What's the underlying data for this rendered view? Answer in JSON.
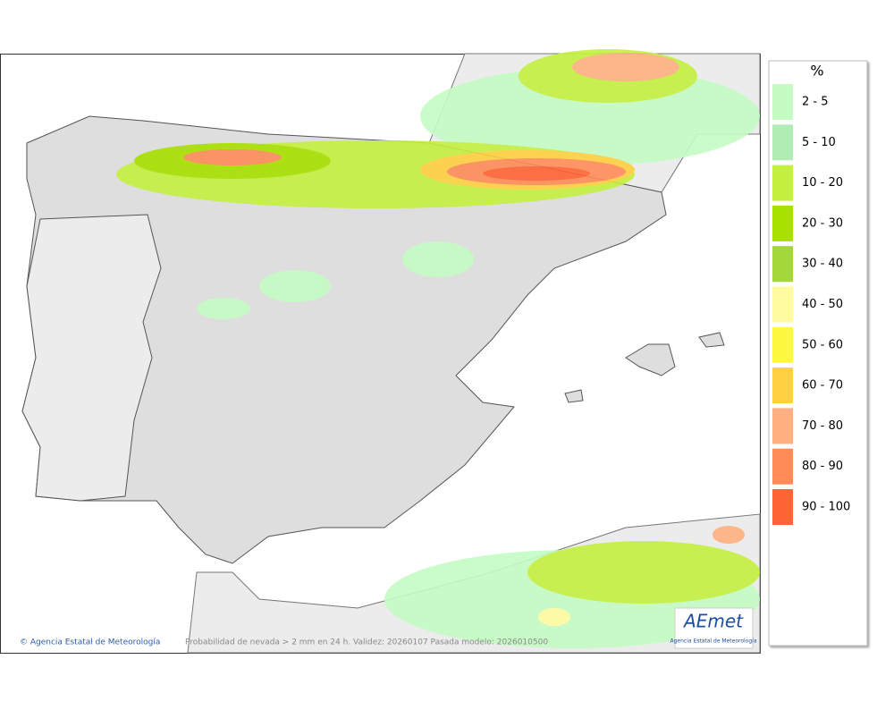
{
  "legend": {
    "unit": "%",
    "items": [
      {
        "label": "2 - 5",
        "color": "#c4fcc4"
      },
      {
        "label": "5 - 10",
        "color": "#b0ecb4"
      },
      {
        "label": "10 - 20",
        "color": "#c4f040"
      },
      {
        "label": "20 - 30",
        "color": "#a8e000"
      },
      {
        "label": "30 - 40",
        "color": "#a4d838"
      },
      {
        "label": "40 - 50",
        "color": "#fffca0"
      },
      {
        "label": "50 - 60",
        "color": "#fff840"
      },
      {
        "label": "60 - 70",
        "color": "#ffd040"
      },
      {
        "label": "70 - 80",
        "color": "#ffb080"
      },
      {
        "label": "80 - 90",
        "color": "#ff8c58"
      },
      {
        "label": "90 - 100",
        "color": "#ff6434"
      }
    ]
  },
  "footer": {
    "credit": "© Agencia Estatal de Meteorología",
    "caption": "Probabilidad de nevada > 2 mm en 24 h. Validez: 20260107 Pasada modelo: 2026010500"
  },
  "logo": {
    "name": "AEmet",
    "subtitle": "Agencia Estatal de Meteorología"
  }
}
